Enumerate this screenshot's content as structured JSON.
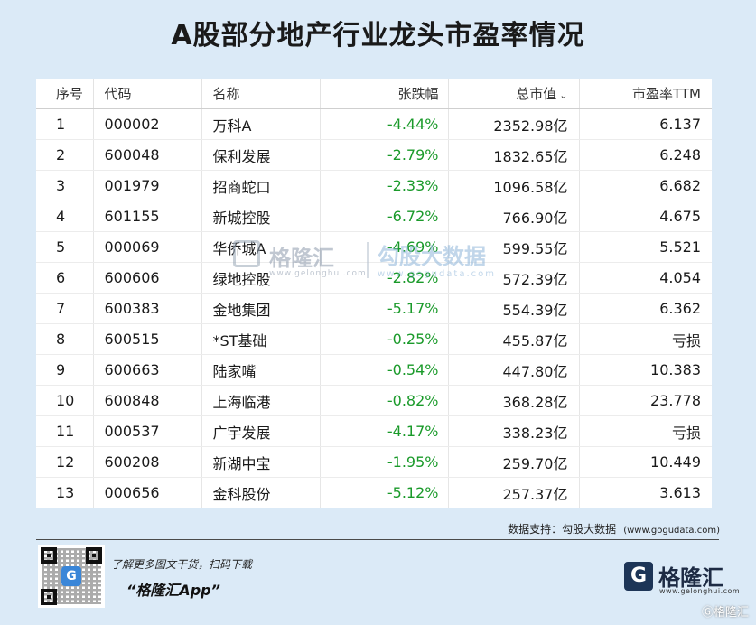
{
  "title": "A股部分地产行业龙头市盈率情况",
  "table": {
    "headers": {
      "idx": "序号",
      "code": "代码",
      "name": "名称",
      "change": "张跌幅",
      "market_cap": "总市值",
      "pe": "市盈率TTM"
    },
    "sort_icon": "chevron-down-icon",
    "rows": [
      {
        "idx": "1",
        "code": "000002",
        "name": "万科A",
        "change": "-4.44%",
        "market_cap": "2352.98亿",
        "pe": "6.137"
      },
      {
        "idx": "2",
        "code": "600048",
        "name": "保利发展",
        "change": "-2.79%",
        "market_cap": "1832.65亿",
        "pe": "6.248"
      },
      {
        "idx": "3",
        "code": "001979",
        "name": "招商蛇口",
        "change": "-2.33%",
        "market_cap": "1096.58亿",
        "pe": "6.682"
      },
      {
        "idx": "4",
        "code": "601155",
        "name": "新城控股",
        "change": "-6.72%",
        "market_cap": "766.90亿",
        "pe": "4.675"
      },
      {
        "idx": "5",
        "code": "000069",
        "name": "华侨城A",
        "change": "-4.69%",
        "market_cap": "599.55亿",
        "pe": "5.521"
      },
      {
        "idx": "6",
        "code": "600606",
        "name": "绿地控股",
        "change": "-2.82%",
        "market_cap": "572.39亿",
        "pe": "4.054"
      },
      {
        "idx": "7",
        "code": "600383",
        "name": "金地集团",
        "change": "-5.17%",
        "market_cap": "554.39亿",
        "pe": "6.362"
      },
      {
        "idx": "8",
        "code": "600515",
        "name": "*ST基础",
        "change": "-0.25%",
        "market_cap": "455.87亿",
        "pe": "亏损"
      },
      {
        "idx": "9",
        "code": "600663",
        "name": "陆家嘴",
        "change": "-0.54%",
        "market_cap": "447.80亿",
        "pe": "10.383"
      },
      {
        "idx": "10",
        "code": "600848",
        "name": "上海临港",
        "change": "-0.82%",
        "market_cap": "368.28亿",
        "pe": "23.778"
      },
      {
        "idx": "11",
        "code": "000537",
        "name": "广宇发展",
        "change": "-4.17%",
        "market_cap": "338.23亿",
        "pe": "亏损"
      },
      {
        "idx": "12",
        "code": "600208",
        "name": "新湖中宝",
        "change": "-1.95%",
        "market_cap": "259.70亿",
        "pe": "10.449"
      },
      {
        "idx": "13",
        "code": "000656",
        "name": "金科股份",
        "change": "-5.12%",
        "market_cap": "257.37亿",
        "pe": "3.613"
      }
    ],
    "colors": {
      "negative_change": "#1a9a2a"
    }
  },
  "watermark": {
    "brand": "格隆汇",
    "brand_sub": "www.gelonghui.com",
    "partner": "勾股大数据",
    "partner_sub": "www.gogudata.com"
  },
  "source": {
    "label": "数据支持：勾股大数据",
    "url": "(www.gogudata.com)"
  },
  "footer": {
    "qr_center": "G",
    "promo_line": "了解更多图文干货，扫码下载",
    "app_name": "“格隆汇App”",
    "brand_logo": "G",
    "brand_name": "格隆汇",
    "brand_sub": "www.gelonghui.com",
    "corner_mark": "Ⓖ格隆汇"
  }
}
